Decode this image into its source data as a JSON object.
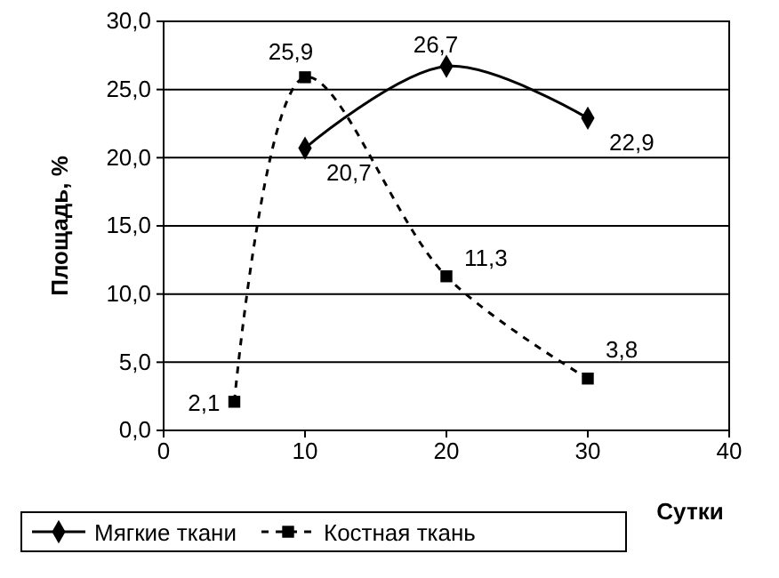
{
  "chart_data": {
    "type": "line",
    "xlabel": "Сутки",
    "ylabel": "Площадь, %",
    "xlim": [
      0,
      40
    ],
    "xticks": [
      0,
      10,
      20,
      30,
      40
    ],
    "ylim": [
      0,
      30
    ],
    "yticks": [
      {
        "value": 0,
        "label": "0,0"
      },
      {
        "value": 5,
        "label": "5,0"
      },
      {
        "value": 10,
        "label": "10,0"
      },
      {
        "value": 15,
        "label": "15,0"
      },
      {
        "value": 20,
        "label": "20,0"
      },
      {
        "value": 25,
        "label": "25,0"
      },
      {
        "value": 30,
        "label": "30,0"
      }
    ],
    "grid": "y",
    "legend": "bottom",
    "series": [
      {
        "name": "Мягкие ткани",
        "color": "#000000",
        "x": [
          10,
          20,
          30
        ],
        "values": [
          20.7,
          26.7,
          22.9
        ],
        "value_labels": [
          "20,7",
          "26,7",
          "22,9"
        ],
        "marker": "diamond",
        "line_style": "solid"
      },
      {
        "name": "Костная ткань",
        "color": "#000000",
        "x": [
          5,
          10,
          20,
          30
        ],
        "values": [
          2.1,
          25.9,
          11.3,
          3.8
        ],
        "value_labels": [
          "2,1",
          "25,9",
          "11,3",
          "3,8"
        ],
        "marker": "square",
        "line_style": "dashed"
      }
    ]
  }
}
